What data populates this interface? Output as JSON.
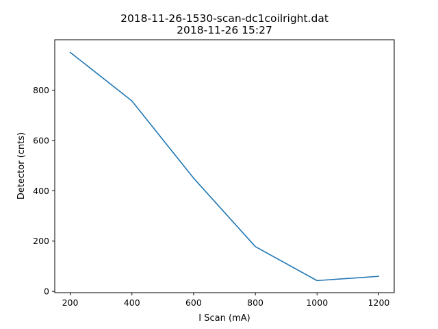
{
  "chart_data": {
    "type": "line",
    "title": "2018-11-26-1530-scan-dc1coilright.dat",
    "subtitle": "2018-11-26 15:27",
    "xlabel": "I Scan (mA)",
    "ylabel": "Detector (cnts)",
    "xlim": [
      150,
      1250
    ],
    "ylim": [
      -5,
      1000
    ],
    "x_ticks": [
      200,
      400,
      600,
      800,
      1000,
      1200
    ],
    "y_ticks": [
      0,
      200,
      400,
      600,
      800
    ],
    "grid": false,
    "series": [
      {
        "x": [
          200,
          400,
          600,
          800,
          1000,
          1200
        ],
        "y": [
          950,
          757,
          450,
          178,
          43,
          60
        ],
        "color": "#1f77b4"
      }
    ]
  }
}
